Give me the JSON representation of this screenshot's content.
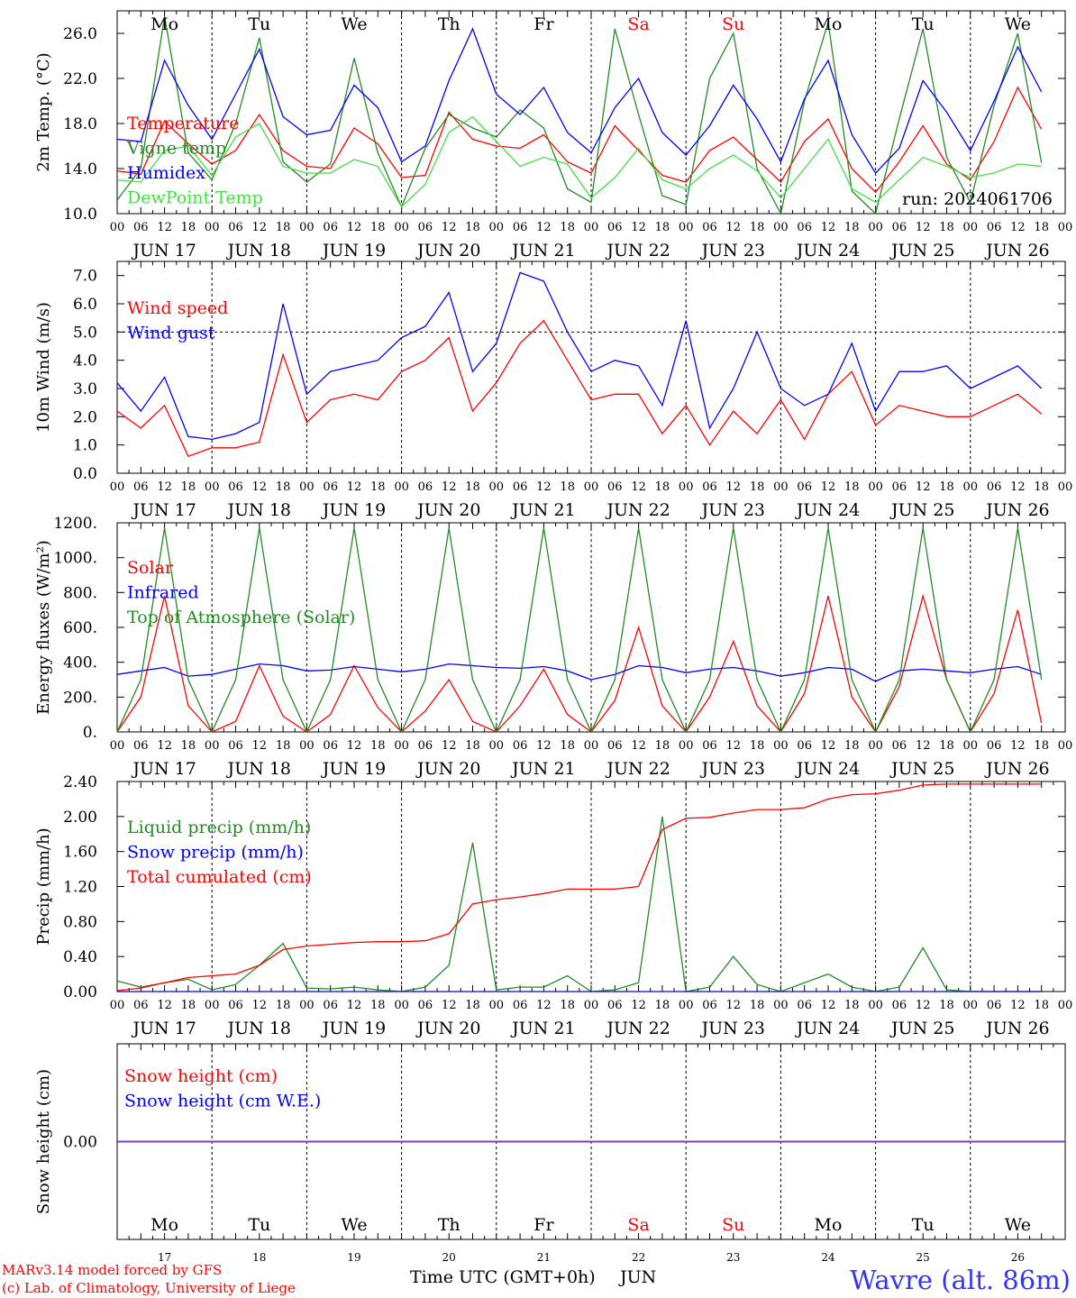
{
  "colors": {
    "red": "#ff0000",
    "green": "#228b22",
    "lightgreen": "#44dd44",
    "blue": "#0000ff",
    "purple": "#7a3fbf",
    "axis": "#000000",
    "weekend": "#ff0000"
  },
  "time_axis": {
    "hour_ticks": [
      "00",
      "06",
      "12",
      "18"
    ],
    "day_labels": [
      "JUN 17",
      "JUN 18",
      "JUN 19",
      "JUN 20",
      "JUN 21",
      "JUN 22",
      "JUN 23",
      "JUN 24",
      "JUN 25",
      "JUN 26"
    ],
    "weekdays": [
      "Mo",
      "Tu",
      "We",
      "Th",
      "Fr",
      "Sa",
      "Su",
      "Mo",
      "Tu",
      "We"
    ],
    "weekend_flags": [
      false,
      false,
      false,
      false,
      false,
      true,
      true,
      false,
      false,
      false
    ],
    "day_numbers": [
      "17",
      "18",
      "19",
      "20",
      "21",
      "22",
      "23",
      "24",
      "25",
      "26"
    ],
    "month": "JUN",
    "xlabel": "Time UTC (GMT+0h)"
  },
  "footer": {
    "model_line": "MARv3.14 model forced by GFS",
    "credit_line": "(c) Lab. of Climatology, University of Liege",
    "station": "Wavre (alt. 86m)"
  },
  "chart_data": [
    {
      "type": "line",
      "ylabel": "2m Temp. (°C)",
      "ylim": [
        10,
        28
      ],
      "yticks": [
        "10.0",
        "14.0",
        "18.0",
        "22.0",
        "26.0"
      ],
      "ytick_values": [
        10,
        14,
        18,
        22,
        26
      ],
      "annotation": "run: 2024061706",
      "legend_placement": "top-left",
      "x_hours": [
        0,
        6,
        12,
        18,
        24,
        30,
        36,
        42,
        48,
        54,
        60,
        66,
        72,
        78,
        84,
        90,
        96,
        102,
        108,
        114,
        120,
        126,
        132,
        138,
        144,
        150,
        156,
        162,
        168,
        174,
        180,
        186,
        192,
        198,
        204,
        210,
        216,
        222,
        228,
        234
      ],
      "series": [
        {
          "name": "Temperature",
          "color_key": "red",
          "values": [
            13.8,
            13.5,
            18.2,
            16.2,
            14.4,
            15.6,
            18.8,
            15.6,
            14.2,
            14.0,
            17.6,
            16.2,
            13.2,
            13.4,
            19.0,
            16.6,
            16.0,
            15.8,
            17.0,
            14.6,
            13.6,
            17.8,
            15.6,
            13.4,
            12.8,
            15.6,
            16.8,
            14.8,
            12.8,
            16.4,
            18.4,
            14.0,
            11.9,
            14.6,
            17.8,
            14.4,
            13.0,
            16.4,
            21.2,
            17.5
          ]
        },
        {
          "name": "Vigne temp",
          "color_key": "green",
          "values": [
            11.2,
            14.0,
            27.5,
            15.4,
            13.0,
            18.0,
            25.6,
            14.6,
            12.8,
            14.4,
            23.8,
            15.4,
            10.6,
            15.8,
            18.8,
            17.6,
            16.8,
            19.2,
            17.6,
            12.2,
            11.0,
            26.4,
            18.8,
            11.6,
            10.8,
            22.0,
            26.0,
            14.0,
            10.0,
            20.0,
            27.0,
            12.0,
            9.6,
            18.4,
            26.4,
            15.0,
            11.0,
            19.6,
            26.0,
            14.5
          ]
        },
        {
          "name": "Humidex",
          "color_key": "blue",
          "values": [
            16.6,
            16.4,
            23.6,
            19.6,
            16.6,
            20.6,
            24.6,
            18.6,
            17.0,
            17.4,
            21.4,
            19.4,
            14.6,
            16.0,
            21.8,
            26.4,
            20.6,
            18.8,
            21.2,
            17.2,
            15.4,
            19.4,
            22.0,
            17.2,
            15.2,
            17.8,
            21.4,
            18.4,
            14.6,
            20.2,
            23.6,
            17.0,
            13.6,
            15.8,
            21.8,
            19.0,
            15.6,
            20.0,
            24.8,
            20.8
          ]
        },
        {
          "name": "DewPoint Temp",
          "color_key": "lightgreen",
          "values": [
            13.0,
            12.8,
            15.6,
            16.0,
            13.4,
            16.8,
            18.0,
            14.2,
            13.6,
            13.6,
            14.8,
            14.2,
            10.6,
            12.6,
            17.2,
            18.6,
            16.4,
            14.2,
            15.0,
            14.4,
            11.4,
            13.2,
            15.8,
            13.0,
            12.2,
            14.0,
            15.2,
            13.8,
            11.4,
            14.0,
            16.6,
            12.2,
            11.0,
            13.0,
            15.0,
            14.2,
            13.2,
            13.6,
            14.4,
            14.2
          ]
        }
      ]
    },
    {
      "type": "line",
      "ylabel": "10m Wind (m/s)",
      "ylim": [
        0,
        7.5
      ],
      "yticks": [
        "0.0",
        "1.0",
        "2.0",
        "3.0",
        "4.0",
        "5.0",
        "6.0",
        "7.0"
      ],
      "ytick_values": [
        0,
        1,
        2,
        3,
        4,
        5,
        6,
        7
      ],
      "reference_line": 5.0,
      "legend_placement": "top-left",
      "x_hours": [
        0,
        6,
        12,
        18,
        24,
        30,
        36,
        42,
        48,
        54,
        60,
        66,
        72,
        78,
        84,
        90,
        96,
        102,
        108,
        114,
        120,
        126,
        132,
        138,
        144,
        150,
        156,
        162,
        168,
        174,
        180,
        186,
        192,
        198,
        204,
        210,
        216,
        222,
        228,
        234
      ],
      "series": [
        {
          "name": "Wind speed",
          "color_key": "red",
          "values": [
            2.2,
            1.6,
            2.4,
            0.6,
            0.9,
            0.9,
            1.1,
            4.2,
            1.8,
            2.6,
            2.8,
            2.6,
            3.6,
            4.0,
            4.8,
            2.2,
            3.2,
            4.6,
            5.4,
            4.0,
            2.6,
            2.8,
            2.8,
            1.4,
            2.4,
            1.0,
            2.2,
            1.4,
            2.6,
            1.2,
            2.8,
            3.6,
            1.7,
            2.4,
            2.2,
            2.0,
            2.0,
            2.4,
            2.8,
            2.1
          ]
        },
        {
          "name": "Wind gust",
          "color_key": "blue",
          "values": [
            3.2,
            2.2,
            3.4,
            1.3,
            1.2,
            1.4,
            1.8,
            6.0,
            2.8,
            3.6,
            3.8,
            4.0,
            4.8,
            5.2,
            6.4,
            3.6,
            4.6,
            7.1,
            6.8,
            5.0,
            3.6,
            4.0,
            3.8,
            2.4,
            5.4,
            1.6,
            3.0,
            5.0,
            3.0,
            2.4,
            2.8,
            4.6,
            2.2,
            3.6,
            3.6,
            3.8,
            3.0,
            3.4,
            3.8,
            3.0
          ]
        }
      ]
    },
    {
      "type": "line",
      "ylabel": "Energy fluxes (W/m²)",
      "ylim": [
        0,
        1200
      ],
      "yticks": [
        "0.",
        "200.",
        "400.",
        "600.",
        "800.",
        "1000.",
        "1200."
      ],
      "ytick_values": [
        0,
        200,
        400,
        600,
        800,
        1000,
        1200
      ],
      "legend_placement": "top-left",
      "x_hours": [
        0,
        6,
        12,
        18,
        24,
        30,
        36,
        42,
        48,
        54,
        60,
        66,
        72,
        78,
        84,
        90,
        96,
        102,
        108,
        114,
        120,
        126,
        132,
        138,
        144,
        150,
        156,
        162,
        168,
        174,
        180,
        186,
        192,
        198,
        204,
        210,
        216,
        222,
        228,
        234
      ],
      "series": [
        {
          "name": "Solar",
          "color_key": "red",
          "values": [
            0,
            200,
            780,
            150,
            0,
            60,
            380,
            90,
            0,
            100,
            380,
            140,
            0,
            120,
            300,
            60,
            0,
            150,
            360,
            100,
            0,
            180,
            600,
            150,
            0,
            200,
            520,
            150,
            0,
            220,
            780,
            200,
            0,
            260,
            780,
            300,
            0,
            220,
            700,
            50
          ]
        },
        {
          "name": "Infrared",
          "color_key": "blue",
          "values": [
            330,
            350,
            370,
            320,
            330,
            360,
            390,
            380,
            350,
            355,
            375,
            360,
            345,
            360,
            390,
            380,
            370,
            365,
            375,
            350,
            300,
            330,
            380,
            370,
            340,
            360,
            370,
            350,
            320,
            340,
            370,
            360,
            290,
            350,
            360,
            350,
            340,
            360,
            375,
            330
          ]
        },
        {
          "name": "Top of Atmosphere (Solar)",
          "color_key": "green",
          "values": [
            0,
            300,
            1170,
            300,
            0,
            300,
            1170,
            300,
            0,
            300,
            1170,
            300,
            0,
            300,
            1170,
            300,
            0,
            300,
            1170,
            300,
            0,
            300,
            1170,
            300,
            0,
            300,
            1170,
            300,
            0,
            300,
            1170,
            300,
            0,
            300,
            1170,
            300,
            0,
            300,
            1170,
            300
          ]
        }
      ]
    },
    {
      "type": "line",
      "ylabel": "Precip (mm/h)",
      "ylim": [
        0,
        2.4
      ],
      "yticks": [
        "0.00",
        "0.40",
        "0.80",
        "1.20",
        "1.60",
        "2.00",
        "2.40"
      ],
      "ytick_values": [
        0,
        0.4,
        0.8,
        1.2,
        1.6,
        2.0,
        2.4
      ],
      "legend_placement": "top-left",
      "x_hours": [
        0,
        6,
        12,
        18,
        24,
        30,
        36,
        42,
        48,
        54,
        60,
        66,
        72,
        78,
        84,
        90,
        96,
        102,
        108,
        114,
        120,
        126,
        132,
        138,
        144,
        150,
        156,
        162,
        168,
        174,
        180,
        186,
        192,
        198,
        204,
        210,
        216,
        222,
        228,
        234
      ],
      "series": [
        {
          "name": "Liquid precip (mm/h)",
          "color_key": "green",
          "values": [
            0.12,
            0.05,
            0.1,
            0.14,
            0.02,
            0.08,
            0.3,
            0.55,
            0.04,
            0.03,
            0.05,
            0.02,
            0.0,
            0.05,
            0.3,
            1.7,
            0.02,
            0.05,
            0.05,
            0.18,
            0.0,
            0.02,
            0.1,
            2.0,
            0.0,
            0.05,
            0.4,
            0.08,
            0.0,
            0.1,
            0.2,
            0.05,
            0.0,
            0.05,
            0.5,
            0.02,
            0.0,
            0.0,
            0.0,
            0.0
          ]
        },
        {
          "name": "Snow precip (mm/h)",
          "color_key": "blue",
          "values": [
            0,
            0,
            0,
            0,
            0,
            0,
            0,
            0,
            0,
            0,
            0,
            0,
            0,
            0,
            0,
            0,
            0,
            0,
            0,
            0,
            0,
            0,
            0,
            0,
            0,
            0,
            0,
            0,
            0,
            0,
            0,
            0,
            0,
            0,
            0,
            0,
            0,
            0,
            0,
            0
          ]
        },
        {
          "name": "Total cumulated (cm)",
          "color_key": "red",
          "values": [
            0.01,
            0.04,
            0.1,
            0.16,
            0.18,
            0.2,
            0.3,
            0.48,
            0.52,
            0.54,
            0.56,
            0.57,
            0.57,
            0.58,
            0.66,
            1.0,
            1.05,
            1.08,
            1.12,
            1.17,
            1.17,
            1.17,
            1.2,
            1.85,
            1.98,
            1.99,
            2.04,
            2.08,
            2.08,
            2.1,
            2.2,
            2.25,
            2.26,
            2.3,
            2.36,
            2.37,
            2.37,
            2.37,
            2.37,
            2.37
          ]
        }
      ]
    },
    {
      "type": "line",
      "ylabel": "Snow height (cm)",
      "ylim": [
        -1,
        1
      ],
      "yticks": [
        "0.00"
      ],
      "ytick_values": [
        0
      ],
      "legend_placement": "top-left",
      "x_hours": [
        0,
        240
      ],
      "series": [
        {
          "name": "Snow height (cm)",
          "color_key": "red",
          "values": [
            0,
            0
          ]
        },
        {
          "name": "Snow height (cm W.E.)",
          "color_key": "blue",
          "values": [
            0,
            0
          ]
        }
      ]
    }
  ]
}
